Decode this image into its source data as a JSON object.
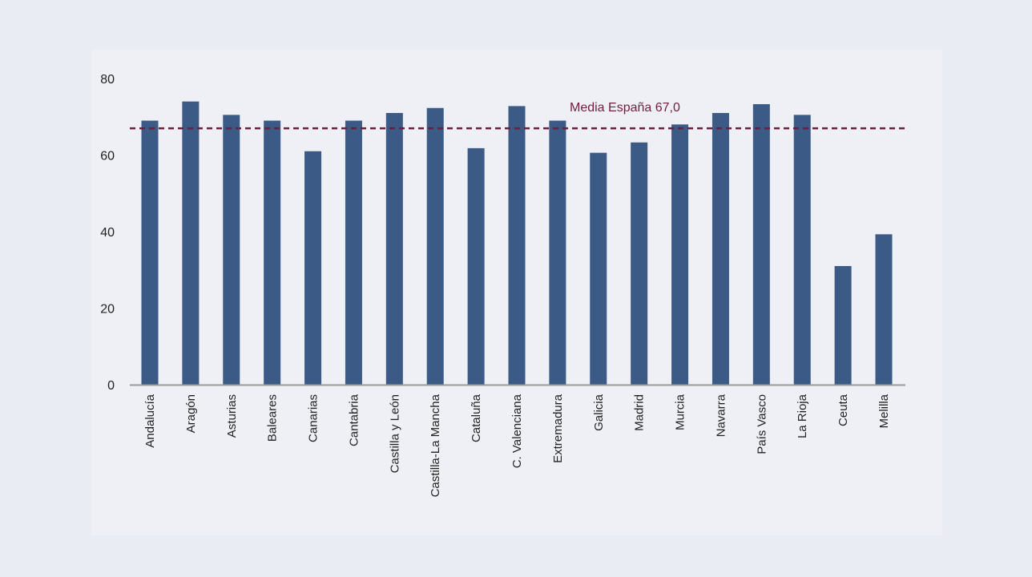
{
  "chart_data": {
    "type": "bar",
    "categories": [
      "Andalucía",
      "Aragón",
      "Asturias",
      "Baleares",
      "Canarias",
      "Cantabria",
      "Castilla y León",
      "Castilla-La Mancha",
      "Cataluña",
      "C. Valenciana",
      "Extremadura",
      "Galicia",
      "Madrid",
      "Murcia",
      "Navarra",
      "País Vasco",
      "La Rioja",
      "Ceuta",
      "Melilla"
    ],
    "values": [
      69.0,
      74.0,
      70.5,
      69.0,
      61.0,
      69.0,
      71.0,
      72.3,
      61.8,
      72.8,
      69.0,
      60.6,
      63.3,
      68.0,
      71.0,
      73.3,
      70.5,
      31.0,
      39.3
    ],
    "ylim": [
      0,
      80
    ],
    "yticks": [
      0,
      20,
      40,
      60,
      80
    ],
    "title": "",
    "xlabel": "",
    "ylabel": "",
    "grid": false,
    "reference_line": {
      "label": "Media España 67,0",
      "value": 67.0
    },
    "colors": {
      "bar": "#3b5a85",
      "reference": "#6e1f3f",
      "axis": "#9a9a9a"
    }
  }
}
